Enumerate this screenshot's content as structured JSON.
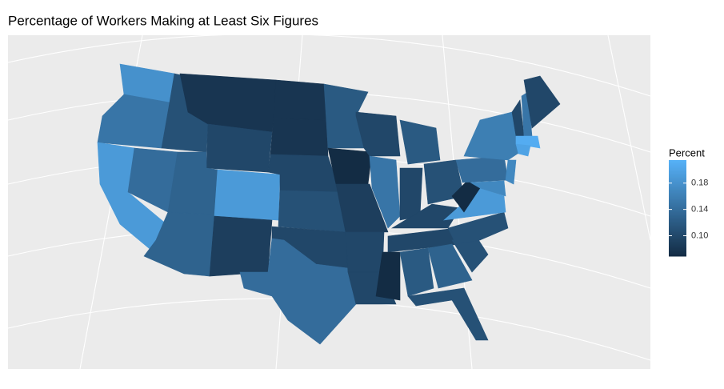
{
  "chart_data": {
    "type": "choropleth",
    "title": "Percentage of Workers Making at Least Six Figures",
    "legend_title": "Percent",
    "values": [
      0.18,
      0.15,
      0.19,
      0.14,
      0.11,
      0.08,
      0.1,
      0.13,
      0.13,
      0.19,
      0.09,
      0.08,
      0.08,
      0.1,
      0.11,
      0.1,
      0.14,
      0.12,
      0.07,
      0.09,
      0.1,
      0.1,
      0.1,
      0.15,
      0.12,
      0.1,
      0.11,
      0.1,
      0.1,
      0.07,
      0.12,
      0.13,
      0.11,
      0.11,
      0.11,
      0.19,
      0.07,
      0.14,
      0.16,
      0.17,
      0.17,
      0.1,
      0.15,
      0.1,
      0.21,
      0.2
    ],
    "colorlim": [
      0.069,
      0.215
    ],
    "colorticks": [
      {
        "value": 0.1,
        "label": "0.10"
      },
      {
        "value": 0.14,
        "label": "0.14"
      },
      {
        "value": 0.18,
        "label": "0.18"
      }
    ],
    "low_color": "#132B43",
    "high_color": "#56B1F7",
    "background": "#EBEBEB"
  }
}
